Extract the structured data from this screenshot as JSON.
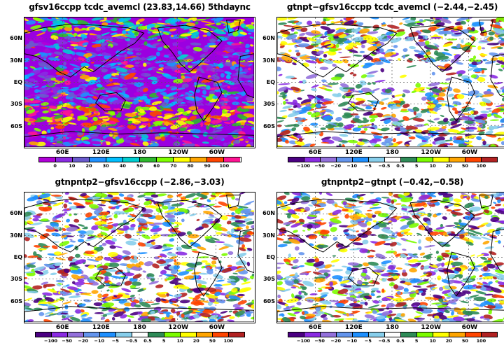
{
  "chart_data": [
    {
      "type": "heatmap",
      "title": "gfsv16ccpp  tcdc_avemcl  (23.83,14.66)  5thdaync",
      "ytick_labels": [
        "60N",
        "30N",
        "EQ",
        "30S",
        "60S"
      ],
      "xtick_labels": [
        "60E",
        "120E",
        "180",
        "120W",
        "60W"
      ],
      "colorbar_labels": [
        "0",
        "10",
        "20",
        "30",
        "40",
        "50",
        "60",
        "70",
        "80",
        "90",
        "100"
      ],
      "colorbar_colors": [
        "#b000d8",
        "#8a2be2",
        "#6a5acd",
        "#1e90ff",
        "#00bfff",
        "#00ced1",
        "#2eb82e",
        "#7fff00",
        "#ffff00",
        "#ffa500",
        "#ff4500",
        "#ff1493"
      ],
      "background": "#9b00e0"
    },
    {
      "type": "heatmap",
      "title": "gtnpt−gfsv16ccpp  tcdc_avemcl  (−2.44,−2.45)",
      "ytick_labels": [
        "60N",
        "30N",
        "EQ",
        "30S",
        "60S"
      ],
      "xtick_labels": [
        "60E",
        "120E",
        "180",
        "120W",
        "60W"
      ],
      "colorbar_labels": [
        "−100",
        "−50",
        "−20",
        "−10",
        "−5",
        "−0.5",
        "0.5",
        "5",
        "10",
        "20",
        "50",
        "100"
      ],
      "colorbar_colors": [
        "#4b0082",
        "#8a2be2",
        "#9370db",
        "#6495ed",
        "#1e90ff",
        "#87ceeb",
        "#ffffff",
        "#2e8b57",
        "#7cfc00",
        "#ffff00",
        "#ffa500",
        "#ff4500",
        "#b22222"
      ],
      "background": "#ffffff"
    },
    {
      "type": "heatmap",
      "title": "gtnpntp2−gfsv16ccpp  (−2.86,−3.03)",
      "ytick_labels": [
        "60N",
        "30N",
        "EQ",
        "30S",
        "60S"
      ],
      "xtick_labels": [
        "60E",
        "120E",
        "180",
        "120W",
        "60W"
      ],
      "colorbar_labels": [
        "−100",
        "−50",
        "−20",
        "−10",
        "−5",
        "−0.5",
        "0.5",
        "5",
        "10",
        "20",
        "50",
        "100"
      ],
      "colorbar_colors": [
        "#4b0082",
        "#8a2be2",
        "#9370db",
        "#6495ed",
        "#1e90ff",
        "#87ceeb",
        "#ffffff",
        "#2e8b57",
        "#7cfc00",
        "#ffff00",
        "#ffa500",
        "#ff4500",
        "#b22222"
      ],
      "background": "#ffffff"
    },
    {
      "type": "heatmap",
      "title": "gtnpntp2−gtnpt  (−0.42,−0.58)",
      "ytick_labels": [
        "60N",
        "30N",
        "EQ",
        "30S",
        "60S"
      ],
      "xtick_labels": [
        "60E",
        "120E",
        "180",
        "120W",
        "60W"
      ],
      "colorbar_labels": [
        "−100",
        "−50",
        "−20",
        "−10",
        "−5",
        "−0.5",
        "0.5",
        "5",
        "10",
        "20",
        "50",
        "100"
      ],
      "colorbar_colors": [
        "#4b0082",
        "#8a2be2",
        "#9370db",
        "#6495ed",
        "#1e90ff",
        "#87ceeb",
        "#ffffff",
        "#2e8b57",
        "#7cfc00",
        "#ffff00",
        "#ffa500",
        "#ff4500",
        "#b22222"
      ],
      "background": "#ffffff"
    }
  ]
}
